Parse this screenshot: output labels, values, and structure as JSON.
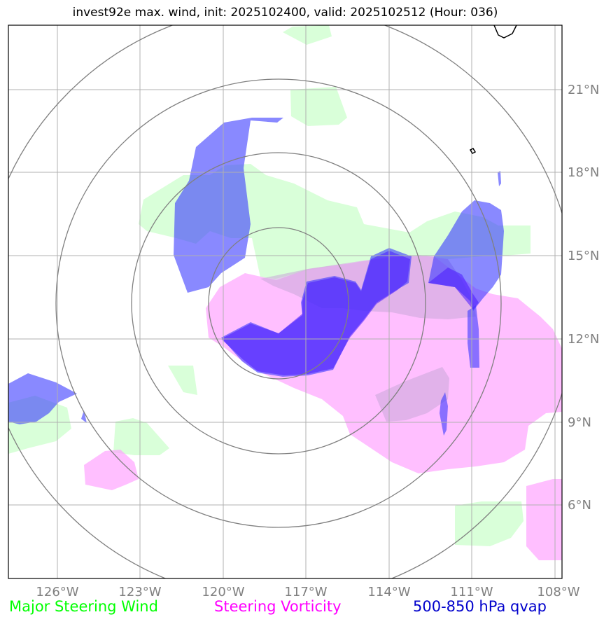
{
  "title": "invest92e max. wind, init: 2025102400, valid: 2025102512 (Hour: 036)",
  "map": {
    "lon_labels": [
      "126°W",
      "123°W",
      "120°W",
      "117°W",
      "114°W",
      "111°W",
      "108°W"
    ],
    "lat_labels": [
      "21°N",
      "18°N",
      "15°N",
      "12°N",
      "9°N",
      "6°N"
    ],
    "range_rings": 4,
    "center_lon": -118.0,
    "center_lat": 13.1
  },
  "legend": {
    "wind": "Major Steering Wind",
    "vorticity": "Steering Vorticity",
    "qvap": "500-850 hPa qvap"
  },
  "colors": {
    "wind": "#ccffcc",
    "vorticity": "#ff9cff",
    "qvap": "#1a1aff",
    "grid": "#b0b0b0",
    "rings": "#808080"
  }
}
